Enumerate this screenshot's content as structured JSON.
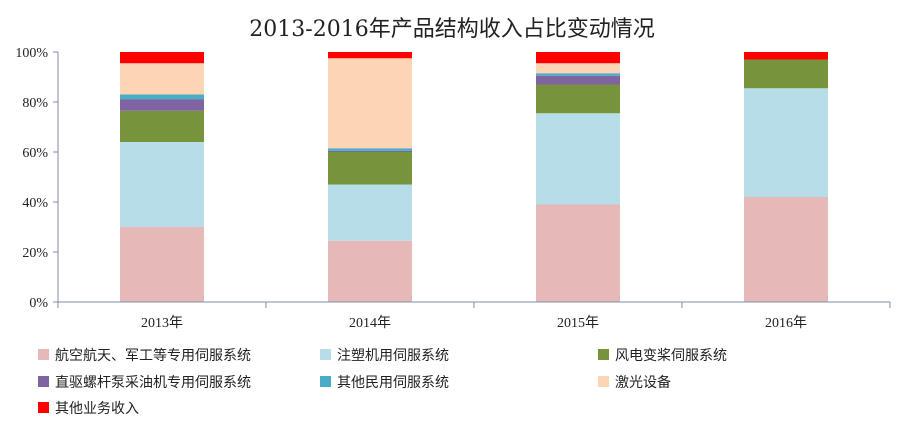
{
  "chart_data": {
    "type": "bar",
    "stacked": true,
    "title": "2013-2016年产品结构收入占比变动情况",
    "categories": [
      "2013年",
      "2014年",
      "2015年",
      "2016年"
    ],
    "y_ticks": [
      "0%",
      "20%",
      "40%",
      "60%",
      "80%",
      "100%"
    ],
    "ylim": [
      0,
      100
    ],
    "grid": false,
    "legend_position": "bottom",
    "series": [
      {
        "name": "航空航天、军工等专用伺服系统",
        "color": "#e6b8b7",
        "values": [
          30,
          24.5,
          39,
          42
        ]
      },
      {
        "name": "注塑机用伺服系统",
        "color": "#b7dde8",
        "values": [
          34,
          22.5,
          36.5,
          43.5
        ]
      },
      {
        "name": "风电变桨伺服系统",
        "color": "#77933c",
        "values": [
          12.5,
          13,
          11.5,
          11.5
        ]
      },
      {
        "name": "直驱螺杆泵采油机专用伺服系统",
        "color": "#8064a2",
        "values": [
          4.5,
          0.5,
          3.5,
          0
        ]
      },
      {
        "name": "其他民用伺服系统",
        "color": "#4bacc6",
        "values": [
          2,
          1,
          1,
          0
        ]
      },
      {
        "name": "激光设备",
        "color": "#fcd5b5",
        "values": [
          12.5,
          36,
          4,
          0
        ]
      },
      {
        "name": "其他业务收入",
        "color": "#ff0000",
        "values": [
          4.5,
          2.5,
          4.5,
          3
        ]
      }
    ]
  }
}
